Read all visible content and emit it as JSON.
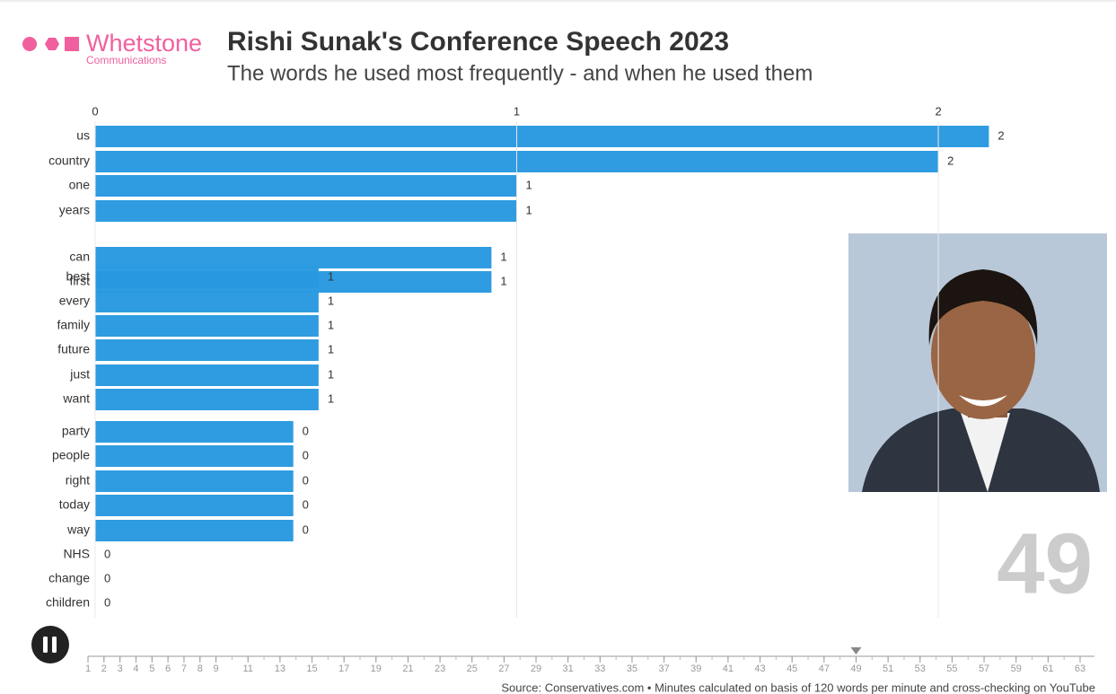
{
  "logo": {
    "name": "Whetstone",
    "tagline": "Communications"
  },
  "source": "Source: Conservatives.com • Minutes calculated on basis of 120 words per minute and cross-checking on YouTube",
  "chart_data": {
    "type": "bar",
    "orientation": "horizontal",
    "title": "Rishi Sunak's Conference Speech 2023",
    "subtitle": "The words he used most frequently - and when he used them",
    "categories": [
      "us",
      "country",
      "one",
      "years",
      "can",
      "first",
      "best",
      "every",
      "family",
      "future",
      "just",
      "want",
      "party",
      "people",
      "right",
      "today",
      "way",
      "NHS",
      "change",
      "children"
    ],
    "values": [
      2.12,
      2.0,
      1.0,
      1.0,
      0.94,
      0.94,
      0.53,
      0.53,
      0.53,
      0.53,
      0.53,
      0.53,
      0.47,
      0.47,
      0.47,
      0.47,
      0.47,
      0,
      0,
      0
    ],
    "value_labels": [
      "2",
      "2",
      "1",
      "1",
      "1",
      "1",
      "1",
      "1",
      "1",
      "1",
      "1",
      "1",
      "0",
      "0",
      "0",
      "0",
      "0",
      "0",
      "0",
      "0"
    ],
    "color": "#2899e0",
    "xlim": [
      0,
      2.2
    ],
    "xticks": [
      0,
      1,
      2
    ],
    "grid": true,
    "timeline": {
      "lim": [
        1,
        63
      ],
      "current": 49,
      "ticks": [
        1,
        2,
        3,
        4,
        5,
        6,
        7,
        8,
        9,
        11,
        13,
        15,
        17,
        19,
        21,
        23,
        25,
        27,
        29,
        31,
        33,
        35,
        37,
        39,
        41,
        43,
        45,
        47,
        49,
        51,
        53,
        55,
        57,
        59,
        61,
        63
      ]
    }
  }
}
